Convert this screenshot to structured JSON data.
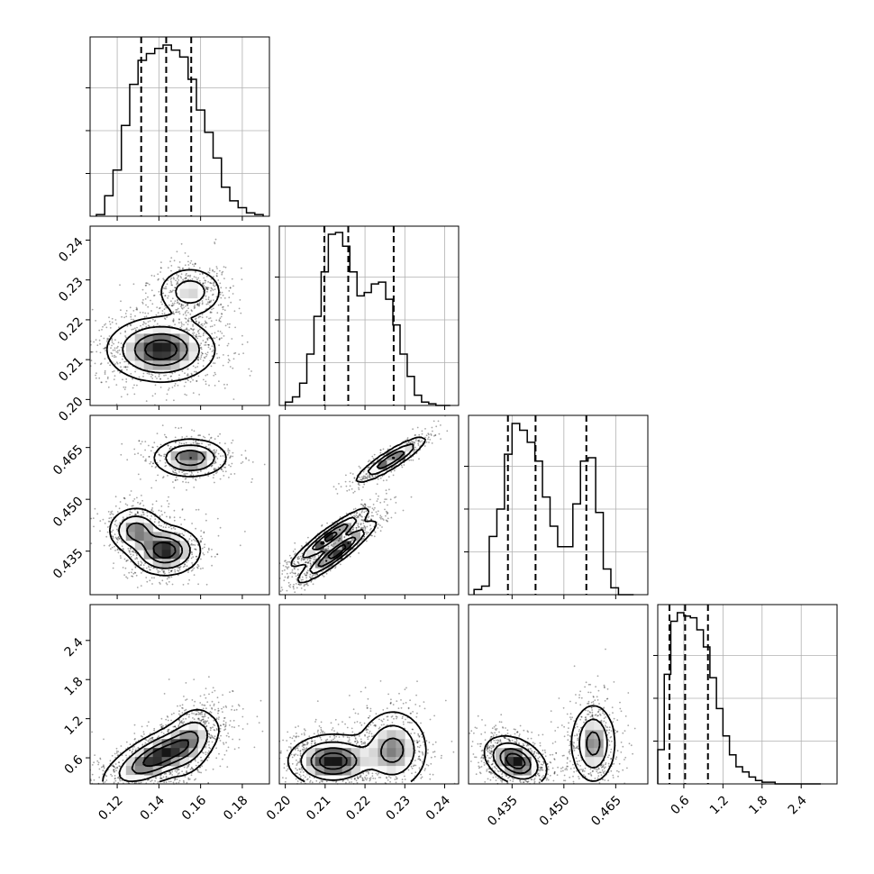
{
  "chart_data": {
    "type": "corner",
    "title": "",
    "parameters": [
      {
        "ticks": [
          0.12,
          0.14,
          0.16,
          0.18
        ],
        "tick_labels": [
          "0.12",
          "0.14",
          "0.16",
          "0.18"
        ],
        "range": [
          0.107,
          0.193
        ]
      },
      {
        "ticks": [
          0.2,
          0.21,
          0.22,
          0.23,
          0.24
        ],
        "tick_labels": [
          "0.20",
          "0.21",
          "0.22",
          "0.23",
          "0.24"
        ],
        "range": [
          0.1985,
          0.2435
        ]
      },
      {
        "ticks": [
          0.435,
          0.45,
          0.465
        ],
        "tick_labels": [
          "0.435",
          "0.450",
          "0.465"
        ],
        "range": [
          0.4224,
          0.4743
        ]
      },
      {
        "ticks": [
          0.6,
          1.2,
          1.8,
          2.4
        ],
        "tick_labels": [
          "0.6",
          "1.2",
          "1.8",
          "2.4"
        ],
        "range": [
          0.2,
          2.95
        ]
      }
    ],
    "marginals": [
      {
        "param": 0,
        "bins": [
          0.11,
          0.114,
          0.118,
          0.122,
          0.126,
          0.13,
          0.134,
          0.138,
          0.142,
          0.146,
          0.15,
          0.154,
          0.158,
          0.162,
          0.166,
          0.17,
          0.174,
          0.178,
          0.182,
          0.186,
          0.19
        ],
        "counts": [
          0.01,
          0.12,
          0.27,
          0.53,
          0.77,
          0.91,
          0.95,
          0.98,
          1.0,
          0.97,
          0.93,
          0.8,
          0.62,
          0.49,
          0.34,
          0.17,
          0.09,
          0.05,
          0.02,
          0.01
        ],
        "quantiles": [
          0.1315,
          0.1435,
          0.1555
        ]
      },
      {
        "param": 1,
        "bins": [
          0.2,
          0.2018,
          0.2036,
          0.2054,
          0.2072,
          0.209,
          0.2108,
          0.2126,
          0.2144,
          0.2162,
          0.218,
          0.2198,
          0.2216,
          0.2234,
          0.2252,
          0.227,
          0.2288,
          0.2306,
          0.2324,
          0.2342,
          0.236,
          0.2378,
          0.2396,
          0.2414
        ],
        "counts": [
          0.02,
          0.05,
          0.13,
          0.3,
          0.52,
          0.78,
          1.0,
          1.01,
          0.93,
          0.78,
          0.64,
          0.66,
          0.71,
          0.72,
          0.62,
          0.47,
          0.3,
          0.17,
          0.06,
          0.02,
          0.01,
          0.0,
          0.0
        ],
        "quantiles": [
          0.2098,
          0.2158,
          0.2272
        ]
      },
      {
        "param": 2,
        "bins": [
          0.424,
          0.4262,
          0.4284,
          0.4306,
          0.4328,
          0.435,
          0.4372,
          0.4394,
          0.4416,
          0.4438,
          0.446,
          0.4482,
          0.4504,
          0.4526,
          0.4548,
          0.457,
          0.4592,
          0.4614,
          0.4636,
          0.4658,
          0.468,
          0.4702
        ],
        "counts": [
          0.03,
          0.05,
          0.34,
          0.5,
          0.82,
          1.0,
          0.96,
          0.89,
          0.78,
          0.57,
          0.4,
          0.28,
          0.28,
          0.53,
          0.78,
          0.8,
          0.48,
          0.15,
          0.04,
          0.0,
          0.0
        ],
        "quantiles": [
          0.4338,
          0.4418,
          0.4565
        ]
      },
      {
        "param": 3,
        "bins": [
          0.2,
          0.3,
          0.4,
          0.5,
          0.6,
          0.7,
          0.8,
          0.9,
          1.0,
          1.1,
          1.2,
          1.3,
          1.4,
          1.5,
          1.6,
          1.7,
          1.8,
          1.9,
          2.0,
          2.1,
          2.2,
          2.3,
          2.4,
          2.5,
          2.6,
          2.7
        ],
        "counts": [
          0.2,
          0.64,
          0.95,
          1.0,
          0.98,
          0.97,
          0.9,
          0.8,
          0.62,
          0.44,
          0.28,
          0.17,
          0.1,
          0.07,
          0.04,
          0.02,
          0.01,
          0.01,
          0.0,
          0.0,
          0.0,
          0.0,
          0.0,
          0.0,
          0.0
        ],
        "quantiles": [
          0.38,
          0.62,
          0.97
        ]
      }
    ],
    "joint_modes": {
      "1,0": [
        {
          "mean": [
            0.141,
            0.2125
          ],
          "sd": [
            0.0115,
            0.0036
          ],
          "w": 0.7
        },
        {
          "mean": [
            0.155,
            0.227
          ],
          "sd": [
            0.0075,
            0.003
          ],
          "w": 0.3
        }
      ],
      "2,0": [
        {
          "mean": [
            0.129,
            0.441
          ],
          "sd": [
            0.006,
            0.003
          ],
          "w": 0.28
        },
        {
          "mean": [
            0.143,
            0.4352
          ],
          "sd": [
            0.0075,
            0.0032
          ],
          "w": 0.4
        },
        {
          "mean": [
            0.155,
            0.462
          ],
          "sd": [
            0.008,
            0.0025
          ],
          "w": 0.32
        }
      ],
      "2,1": [
        {
          "mean": [
            0.2112,
            0.439
          ],
          "sd": [
            0.0044,
            0.0038
          ],
          "corr": 0.93,
          "w": 0.34
        },
        {
          "mean": [
            0.213,
            0.4348
          ],
          "sd": [
            0.0044,
            0.004
          ],
          "corr": 0.93,
          "w": 0.36
        },
        {
          "mean": [
            0.2265,
            0.4615
          ],
          "sd": [
            0.004,
            0.003
          ],
          "corr": 0.9,
          "w": 0.3
        }
      ],
      "3,0": [
        {
          "mean": [
            0.14,
            0.62
          ],
          "sd": [
            0.012,
            0.24
          ],
          "corr": 0.7,
          "w": 0.75
        },
        {
          "mean": [
            0.155,
            0.85
          ],
          "sd": [
            0.006,
            0.28
          ],
          "corr": 0.3,
          "w": 0.25
        }
      ],
      "3,1": [
        {
          "mean": [
            0.212,
            0.55
          ],
          "sd": [
            0.005,
            0.18
          ],
          "w": 0.6
        },
        {
          "mean": [
            0.227,
            0.72
          ],
          "sd": [
            0.004,
            0.28
          ],
          "w": 0.4
        }
      ],
      "3,2": [
        {
          "mean": [
            0.436,
            0.55
          ],
          "sd": [
            0.004,
            0.17
          ],
          "corr": -0.35,
          "w": 0.6
        },
        {
          "mean": [
            0.4585,
            0.82
          ],
          "sd": [
            0.003,
            0.28
          ],
          "w": 0.4
        }
      ]
    }
  }
}
